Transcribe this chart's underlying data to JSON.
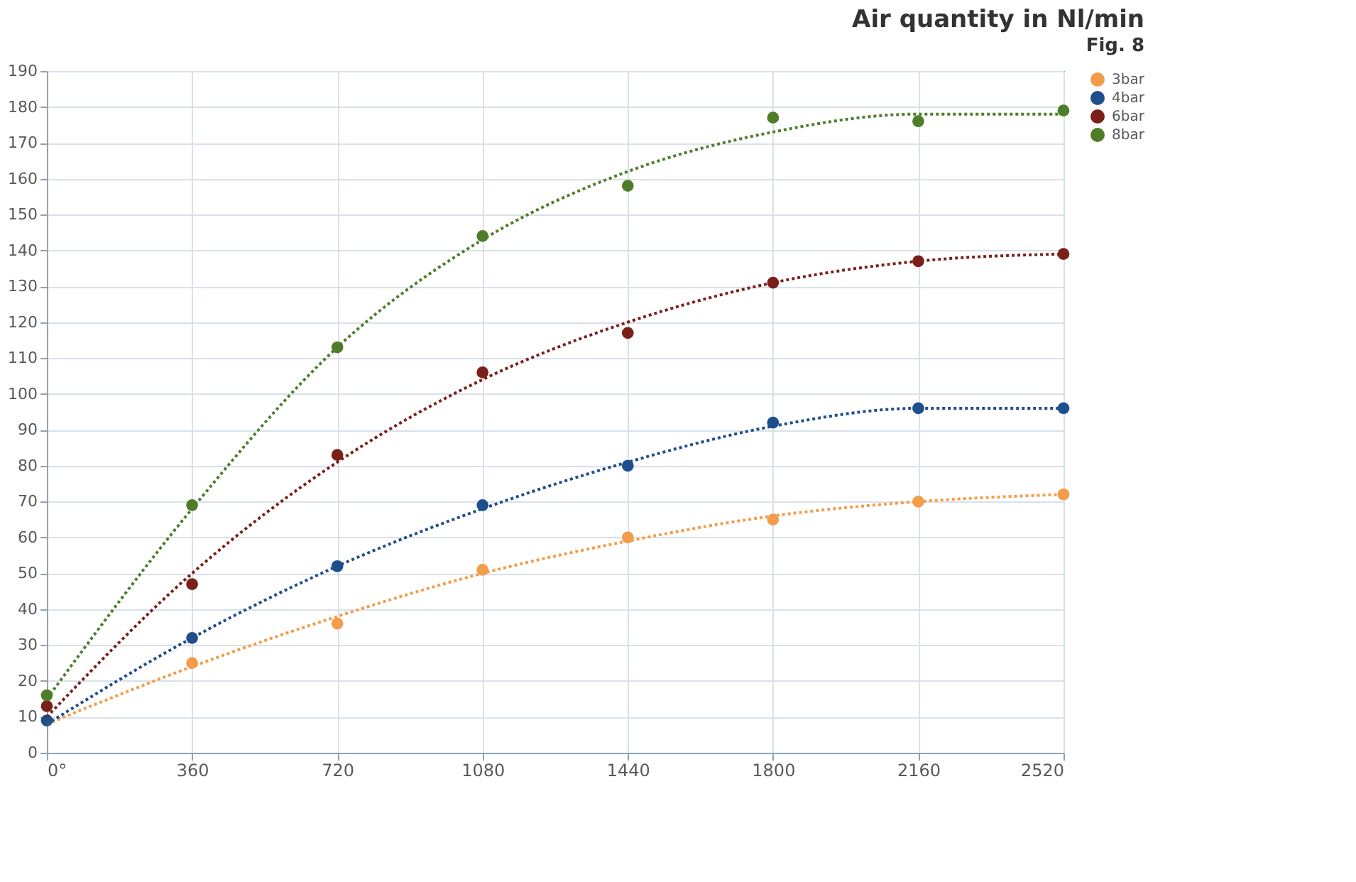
{
  "chart_data": {
    "type": "scatter",
    "title": "Air quantity in Nl/min",
    "annotations": [
      "Fig. 8"
    ],
    "x": [
      0,
      360,
      720,
      1080,
      1440,
      1800,
      2160,
      2520
    ],
    "series": [
      {
        "name": "3bar",
        "color": "#f39c4a",
        "values": [
          null,
          25,
          36,
          51,
          60,
          65,
          70,
          72
        ]
      },
      {
        "name": "4bar",
        "color": "#1f4e8c",
        "values": [
          9,
          32,
          52,
          69,
          80,
          92,
          96,
          96
        ]
      },
      {
        "name": "6bar",
        "color": "#7b1f1a",
        "values": [
          13,
          47,
          83,
          106,
          117,
          131,
          137,
          139
        ]
      },
      {
        "name": "8bar",
        "color": "#4e7d2a",
        "values": [
          16,
          69,
          113,
          144,
          158,
          177,
          176,
          179
        ]
      },
      {
        "type": "line",
        "line_style": "dotted",
        "marker": "none",
        "color": "#f39c4a",
        "values": [
          8,
          24,
          38,
          50,
          59,
          66,
          70,
          72
        ]
      },
      {
        "type": "line",
        "line_style": "dotted",
        "marker": "none",
        "color": "#1f4e8c",
        "values": [
          8,
          32,
          52,
          68,
          81,
          91,
          96,
          96
        ]
      },
      {
        "type": "line",
        "line_style": "dotted",
        "marker": "none",
        "color": "#7b1f1a",
        "values": [
          10,
          50,
          81,
          104,
          120,
          131,
          137,
          139
        ]
      },
      {
        "type": "line",
        "line_style": "dotted",
        "marker": "none",
        "color": "#4e7d2a",
        "values": [
          15,
          68,
          113,
          143,
          162,
          173,
          178,
          178
        ]
      }
    ],
    "xlim": [
      0,
      2520
    ],
    "xticks": [
      {
        "value": 0,
        "label": "0°"
      },
      360,
      720,
      1080,
      1440,
      1800,
      2160,
      2520
    ],
    "ylim": [
      0,
      190
    ],
    "yticks": [
      0,
      10,
      20,
      30,
      40,
      50,
      60,
      70,
      80,
      90,
      100,
      110,
      120,
      130,
      140,
      150,
      160,
      170,
      180,
      190
    ],
    "grid": true,
    "legend": "right",
    "marker": "circle"
  }
}
